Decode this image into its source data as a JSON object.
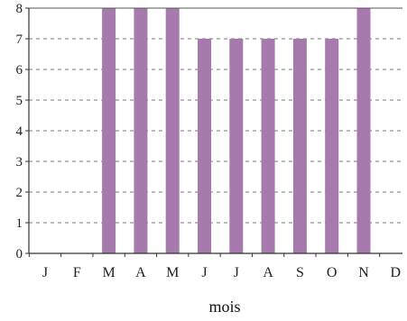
{
  "chart_data": {
    "type": "bar",
    "title": "",
    "xlabel": "mois",
    "ylabel": "",
    "categories": [
      "J",
      "F",
      "M",
      "A",
      "M",
      "J",
      "J",
      "A",
      "S",
      "O",
      "N",
      "D"
    ],
    "values": [
      0,
      0,
      8,
      8,
      8,
      7,
      7,
      7,
      7,
      7,
      8,
      0
    ],
    "ylim": [
      0,
      8
    ],
    "yticks": [
      "0",
      "1",
      "2",
      "3",
      "4",
      "5",
      "6",
      "7",
      "8"
    ],
    "grid": "horizontal dashed",
    "bar_color": "#a77aad"
  }
}
